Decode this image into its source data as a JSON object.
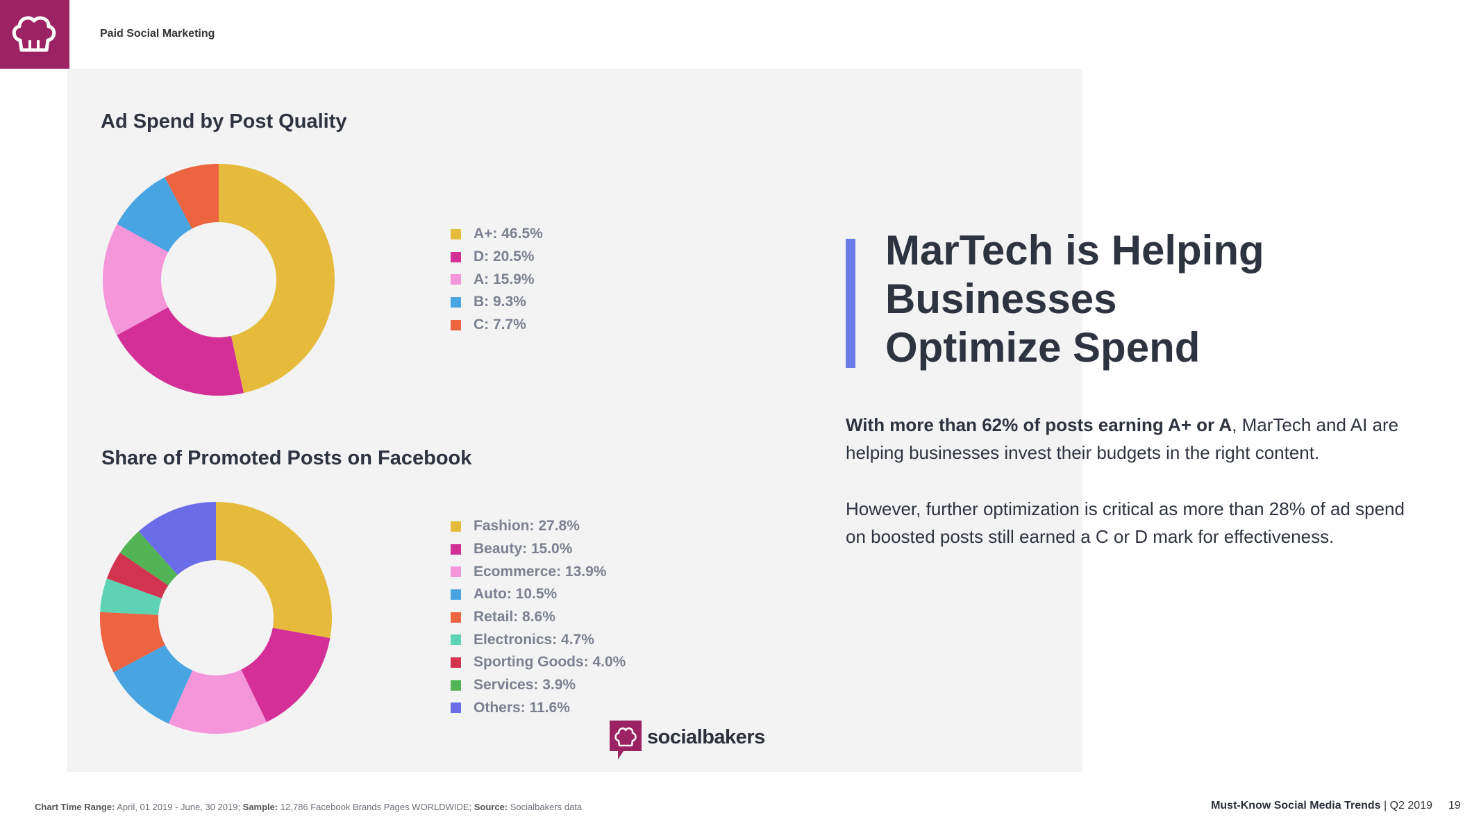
{
  "header": {
    "section": "Paid Social Marketing",
    "logo_icon": "chef-hat-icon",
    "logo_color": "#9b2364"
  },
  "chart_data": [
    {
      "type": "pie",
      "subtype": "donut",
      "title": "Ad Spend by Post Quality",
      "slices": [
        {
          "label": "A+: 46.5%",
          "name": "A+",
          "value": 46.5,
          "color": "#e6bb3c"
        },
        {
          "label": "D: 20.5%",
          "name": "D",
          "value": 20.5,
          "color": "#d42f96"
        },
        {
          "label": "A: 15.9%",
          "name": "A",
          "value": 15.9,
          "color": "#f595da"
        },
        {
          "label": "B: 9.3%",
          "name": "B",
          "value": 9.3,
          "color": "#48a5e2"
        },
        {
          "label": "C: 7.7%",
          "name": "C",
          "value": 7.7,
          "color": "#ec6440"
        }
      ]
    },
    {
      "type": "pie",
      "subtype": "donut",
      "title": "Share of Promoted Posts on Facebook",
      "slices": [
        {
          "label": "Fashion: 27.8%",
          "name": "Fashion",
          "value": 27.8,
          "color": "#e6bb3c"
        },
        {
          "label": "Beauty: 15.0%",
          "name": "Beauty",
          "value": 15.0,
          "color": "#d42f96"
        },
        {
          "label": "Ecommerce: 13.9%",
          "name": "Ecommerce",
          "value": 13.9,
          "color": "#f595da"
        },
        {
          "label": "Auto: 10.5%",
          "name": "Auto",
          "value": 10.5,
          "color": "#48a5e2"
        },
        {
          "label": "Retail: 8.6%",
          "name": "Retail",
          "value": 8.6,
          "color": "#ec6440"
        },
        {
          "label": "Electronics: 4.7%",
          "name": "Electronics",
          "value": 4.7,
          "color": "#5ed3b3"
        },
        {
          "label": "Sporting Goods: 4.0%",
          "name": "Sporting Goods",
          "value": 4.0,
          "color": "#d2344f"
        },
        {
          "label": "Services: 3.9%",
          "name": "Services",
          "value": 3.9,
          "color": "#52b454"
        },
        {
          "label": "Others: 11.6%",
          "name": "Others",
          "value": 11.6,
          "color": "#6b6ce8"
        }
      ]
    }
  ],
  "headline": {
    "line1": "MarTech is Helping",
    "line2": "Businesses",
    "line3": "Optimize Spend",
    "accent_color": "#6a7de8"
  },
  "body": {
    "p1_bold": "With more than 62% of posts earning A+ or A",
    "p1_rest": ", MarTech and AI are helping businesses invest their budgets in the right content.",
    "p2": "However, further optimization is critical as more than 28% of ad spend on boosted posts still earned a C or D mark for effectiveness."
  },
  "brand": {
    "name": "socialbakers",
    "icon": "chef-hat-icon"
  },
  "footer": {
    "range_label": "Chart Time Range:",
    "range_value": " April, 01 2019 - June, 30 2019;",
    "sample_label": " Sample:",
    "sample_value": " 12,786 Facebook Brands Pages WORLDWIDE;",
    "source_label": " Source:",
    "source_value": " Socialbakers data",
    "report_title": "Must-Know Social Media Trends",
    "report_period": " | Q2 2019",
    "page": "19"
  }
}
